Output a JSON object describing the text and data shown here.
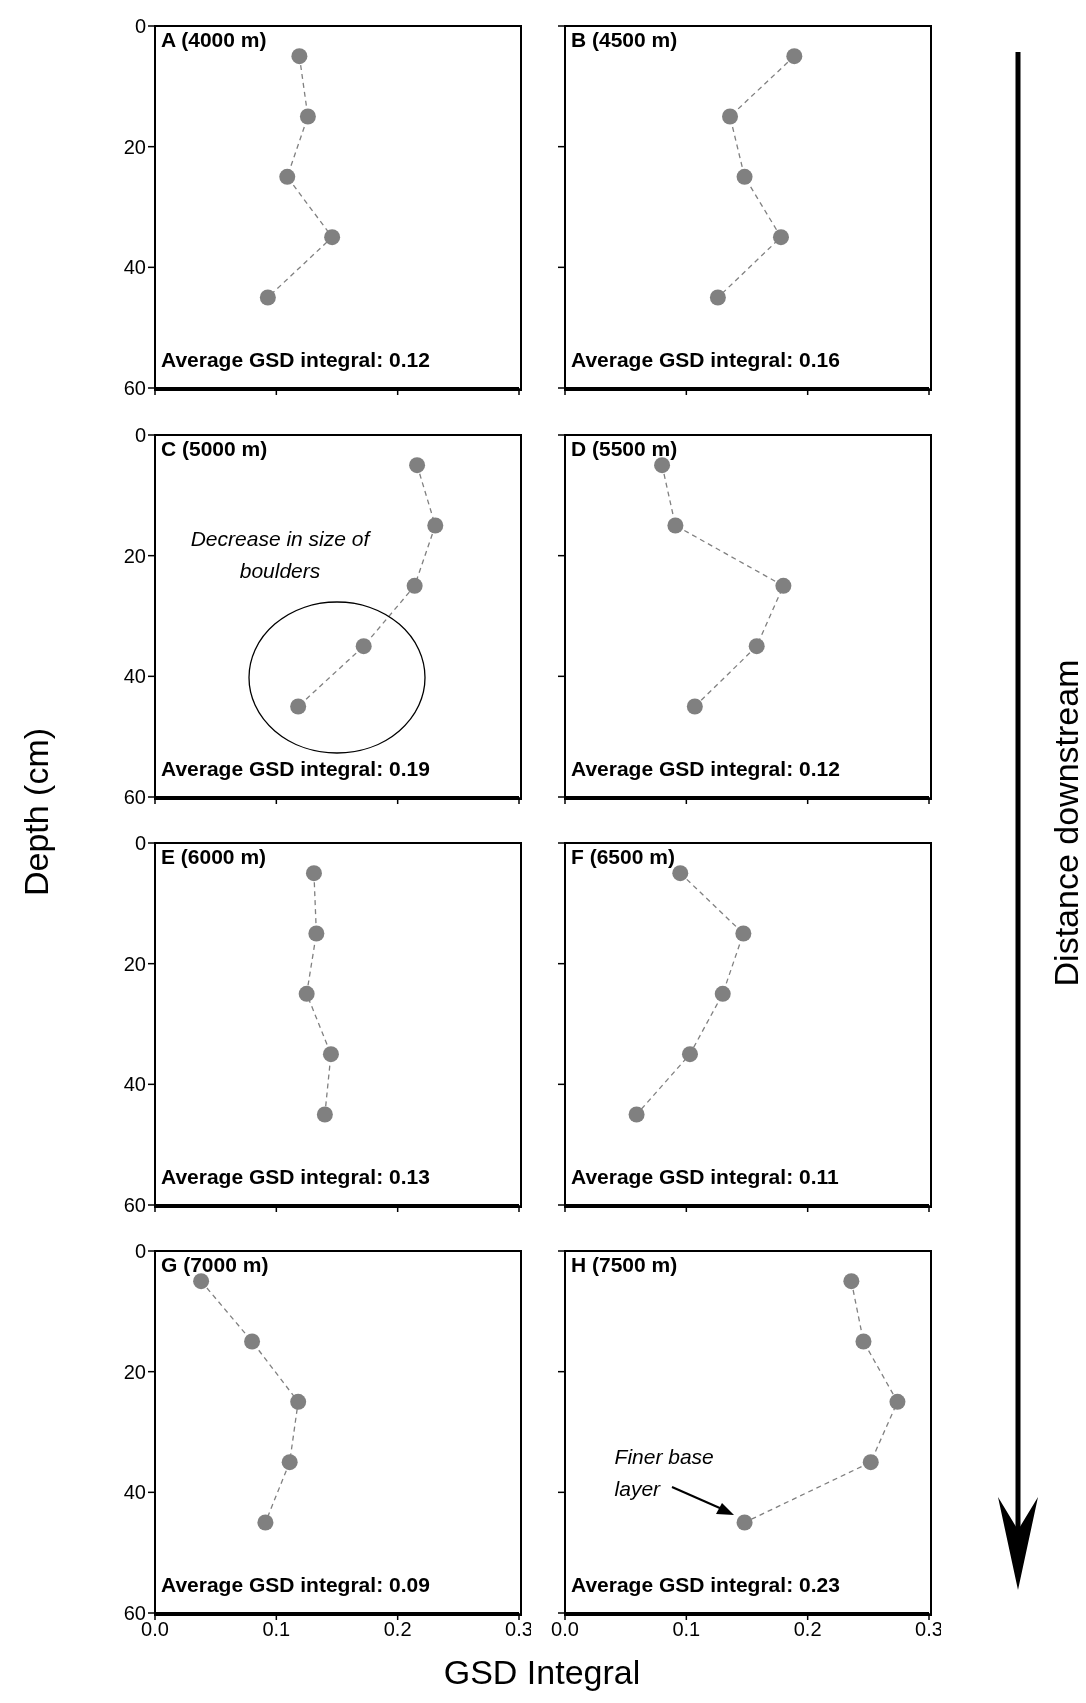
{
  "chart_data": [
    {
      "type": "line",
      "title": "A (4000 m)",
      "annotations": [
        "Average GSD integral: 0.12"
      ],
      "marker": "circle",
      "line_style": "dashed",
      "tick_labels": "y",
      "xlim": [
        0,
        0.3
      ],
      "xticks": [
        {
          "value": 0,
          "label": null
        },
        {
          "value": 0.1,
          "label": null
        },
        {
          "value": 0.2,
          "label": null
        },
        {
          "value": 0.3,
          "label": null
        }
      ],
      "ylim": [
        60,
        0
      ],
      "yticks": [
        0,
        20,
        40,
        60
      ],
      "series": [
        {
          "color": "#808080",
          "x": [
            0.119,
            0.126,
            0.109,
            0.146,
            0.093
          ],
          "values": [
            5,
            15,
            25,
            35,
            45
          ]
        }
      ]
    },
    {
      "type": "line",
      "title": "B (4500 m)",
      "annotations": [
        "Average GSD integral: 0.16",
        "Distance downstream"
      ],
      "marker": "circle",
      "line_style": "dashed",
      "tick_labels": false,
      "xlim": [
        0,
        0.3
      ],
      "xticks": [
        {
          "value": 0,
          "label": null
        },
        {
          "value": 0.1,
          "label": null
        },
        {
          "value": 0.2,
          "label": null
        },
        {
          "value": 0.3,
          "label": null
        }
      ],
      "ylim": [
        60,
        0
      ],
      "yticks": [
        {
          "value": 0,
          "label": null
        },
        {
          "value": 20,
          "label": null
        },
        {
          "value": 40,
          "label": null
        },
        {
          "value": 60,
          "label": null
        }
      ],
      "series": [
        {
          "color": "#808080",
          "x": [
            0.189,
            0.136,
            0.148,
            0.178,
            0.126
          ],
          "values": [
            5,
            15,
            25,
            35,
            45
          ]
        }
      ]
    },
    {
      "type": "line",
      "title": "C (5000 m)",
      "ylabel": "Depth (cm)",
      "annotations": [
        "Average GSD integral: 0.19",
        "Decrease in size of boulders"
      ],
      "marker": "circle",
      "line_style": "dashed",
      "tick_labels": "y",
      "xlim": [
        0,
        0.3
      ],
      "xticks": [
        {
          "value": 0,
          "label": null
        },
        {
          "value": 0.1,
          "label": null
        },
        {
          "value": 0.2,
          "label": null
        },
        {
          "value": 0.3,
          "label": null
        }
      ],
      "ylim": [
        60,
        0
      ],
      "yticks": [
        0,
        20,
        40,
        60
      ],
      "series": [
        {
          "color": "#808080",
          "x": [
            0.216,
            0.231,
            0.214,
            0.172,
            0.118
          ],
          "values": [
            5,
            15,
            25,
            35,
            45
          ]
        }
      ]
    },
    {
      "type": "line",
      "title": "D (5500 m)",
      "annotations": [
        "Average GSD integral: 0.12"
      ],
      "marker": "circle",
      "line_style": "dashed",
      "tick_labels": false,
      "xlim": [
        0,
        0.3
      ],
      "xticks": [
        {
          "value": 0,
          "label": null
        },
        {
          "value": 0.1,
          "label": null
        },
        {
          "value": 0.2,
          "label": null
        },
        {
          "value": 0.3,
          "label": null
        }
      ],
      "ylim": [
        60,
        0
      ],
      "yticks": [
        {
          "value": 0,
          "label": null
        },
        {
          "value": 20,
          "label": null
        },
        {
          "value": 40,
          "label": null
        },
        {
          "value": 60,
          "label": null
        }
      ],
      "series": [
        {
          "color": "#808080",
          "x": [
            0.08,
            0.091,
            0.18,
            0.158,
            0.107
          ],
          "values": [
            5,
            15,
            25,
            35,
            45
          ]
        }
      ]
    },
    {
      "type": "line",
      "title": "E (6000 m)",
      "annotations": [
        "Average GSD integral: 0.13"
      ],
      "marker": "circle",
      "line_style": "dashed",
      "tick_labels": "y",
      "xlim": [
        0,
        0.3
      ],
      "xticks": [
        {
          "value": 0,
          "label": null
        },
        {
          "value": 0.1,
          "label": null
        },
        {
          "value": 0.2,
          "label": null
        },
        {
          "value": 0.3,
          "label": null
        }
      ],
      "ylim": [
        60,
        0
      ],
      "yticks": [
        0,
        20,
        40,
        60
      ],
      "series": [
        {
          "color": "#808080",
          "x": [
            0.131,
            0.133,
            0.125,
            0.145,
            0.14
          ],
          "values": [
            5,
            15,
            25,
            35,
            45
          ]
        }
      ]
    },
    {
      "type": "line",
      "title": "F (6500 m)",
      "annotations": [
        "Average GSD integral: 0.11"
      ],
      "marker": "circle",
      "line_style": "dashed",
      "tick_labels": false,
      "xlim": [
        0,
        0.3
      ],
      "xticks": [
        {
          "value": 0,
          "label": null
        },
        {
          "value": 0.1,
          "label": null
        },
        {
          "value": 0.2,
          "label": null
        },
        {
          "value": 0.3,
          "label": null
        }
      ],
      "ylim": [
        60,
        0
      ],
      "yticks": [
        {
          "value": 0,
          "label": null
        },
        {
          "value": 20,
          "label": null
        },
        {
          "value": 40,
          "label": null
        },
        {
          "value": 60,
          "label": null
        }
      ],
      "series": [
        {
          "color": "#808080",
          "x": [
            0.095,
            0.147,
            0.13,
            0.103,
            0.059
          ],
          "values": [
            5,
            15,
            25,
            35,
            45
          ]
        }
      ]
    },
    {
      "type": "line",
      "title": "G (7000 m)",
      "xlabel": "GSD Integral",
      "annotations": [
        "Average GSD integral: 0.09"
      ],
      "marker": "circle",
      "line_style": "dashed",
      "xlim": [
        0,
        0.3
      ],
      "xticks": [
        {
          "value": 0,
          "label": "0.0"
        },
        {
          "value": 0.1,
          "label": "0.1"
        },
        {
          "value": 0.2,
          "label": "0.2"
        },
        {
          "value": 0.3,
          "label": "0.3"
        }
      ],
      "ylim": [
        60,
        0
      ],
      "yticks": [
        0,
        20,
        40,
        60
      ],
      "series": [
        {
          "color": "#808080",
          "x": [
            0.038,
            0.08,
            0.118,
            0.111,
            0.091
          ],
          "values": [
            5,
            15,
            25,
            35,
            45
          ]
        }
      ]
    },
    {
      "type": "line",
      "title": "H (7500 m)",
      "annotations": [
        "Average GSD integral: 0.23",
        {
          "text": "Finer base layer",
          "x": 0.148,
          "y": 45
        }
      ],
      "marker": "circle",
      "line_style": "dashed",
      "tick_labels": "x",
      "xlim": [
        0,
        0.3
      ],
      "xticks": [
        {
          "value": 0,
          "label": "0.0"
        },
        {
          "value": 0.1,
          "label": "0.1"
        },
        {
          "value": 0.2,
          "label": "0.2"
        },
        {
          "value": 0.3,
          "label": "0.3"
        }
      ],
      "ylim": [
        60,
        0
      ],
      "yticks": [
        {
          "value": 0,
          "label": null
        },
        {
          "value": 20,
          "label": null
        },
        {
          "value": 40,
          "label": null
        },
        {
          "value": 60,
          "label": null
        }
      ],
      "series": [
        {
          "color": "#808080",
          "x": [
            0.236,
            0.246,
            0.274,
            0.252,
            0.148
          ],
          "values": [
            5,
            15,
            25,
            35,
            45
          ]
        }
      ]
    }
  ]
}
